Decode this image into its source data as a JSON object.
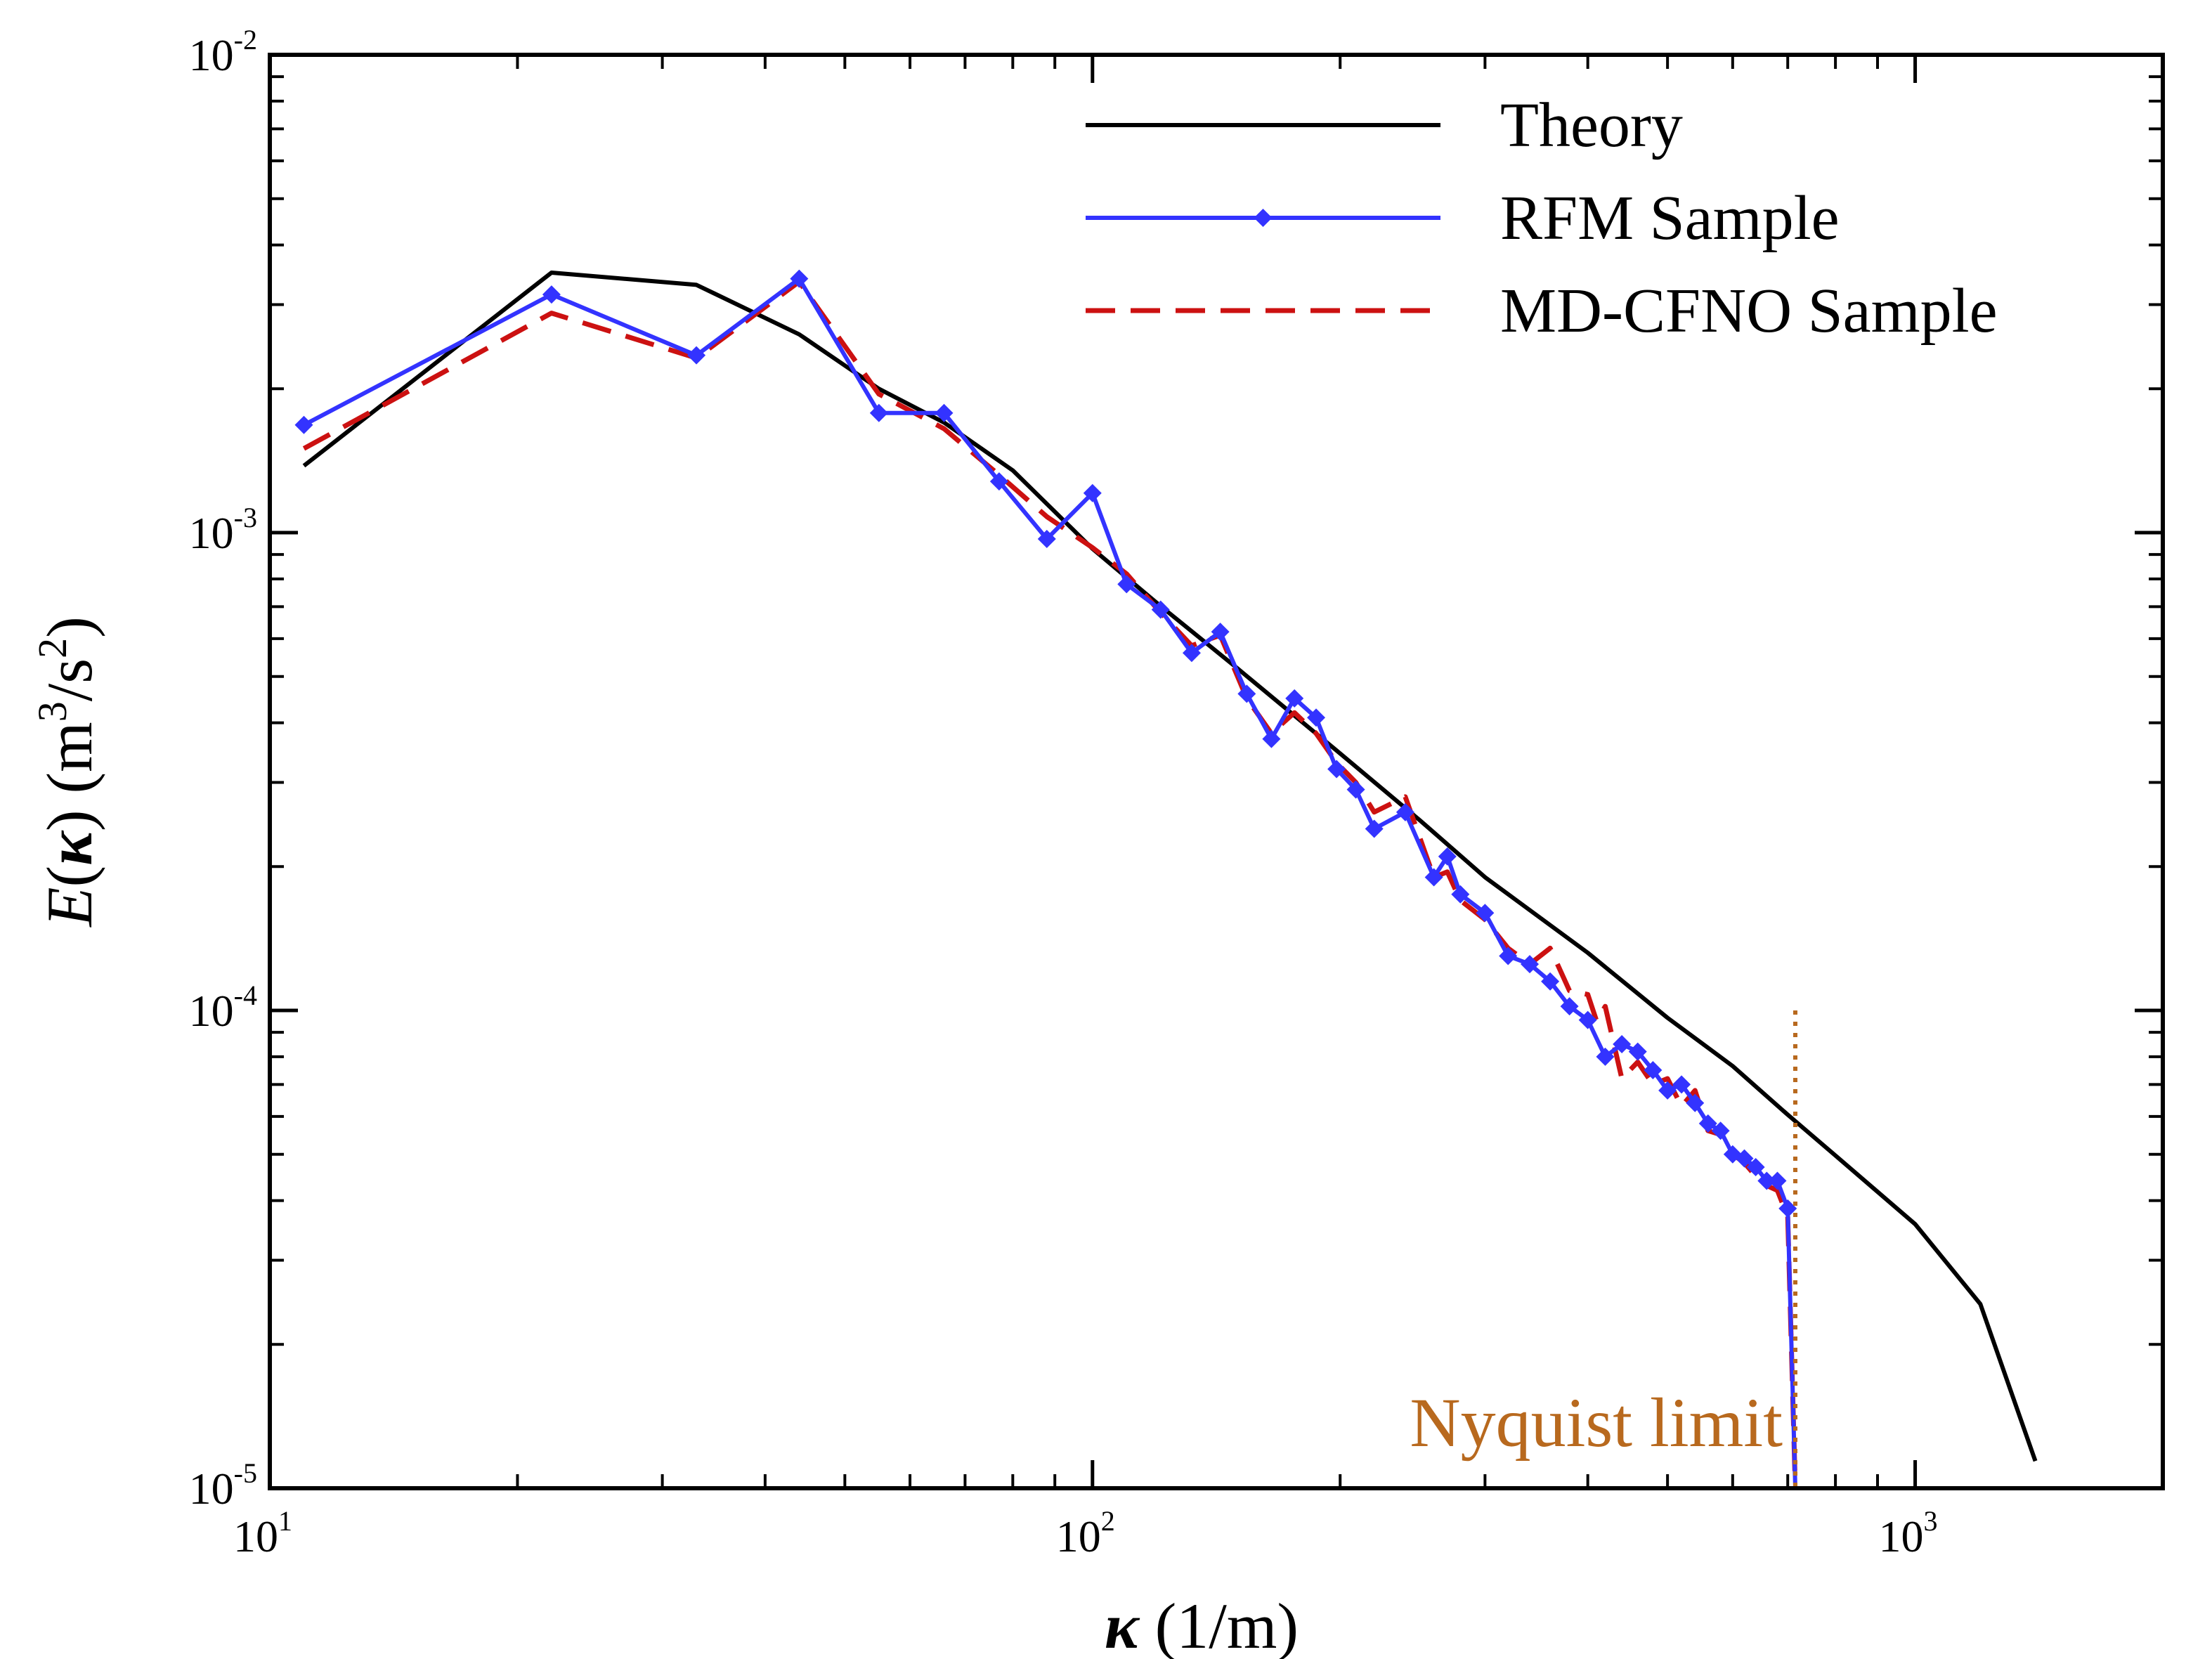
{
  "chart_data": {
    "type": "line",
    "xscale": "log",
    "yscale": "log",
    "xlim": [
      10,
      2000
    ],
    "ylim": [
      1e-05,
      0.01
    ],
    "xticks": [
      {
        "value": 10,
        "base": "10",
        "exp": "1"
      },
      {
        "value": 100,
        "base": "10",
        "exp": "2"
      },
      {
        "value": 1000,
        "base": "10",
        "exp": "3"
      }
    ],
    "yticks": [
      {
        "value": 1e-05,
        "base": "10",
        "exp": "-5"
      },
      {
        "value": 0.0001,
        "base": "10",
        "exp": "-4"
      },
      {
        "value": 0.001,
        "base": "10",
        "exp": "-3"
      },
      {
        "value": 0.01,
        "base": "10",
        "exp": "-2"
      }
    ],
    "xlabel": {
      "symbol": "κ",
      "unit": " (1/m)"
    },
    "ylabel": {
      "func": "E",
      "open": "(",
      "symbol": "κ",
      "close": ")",
      "unit_open": " (m",
      "sup1": "3",
      "unit_mid": "/s",
      "sup2": "2",
      "unit_close": ")"
    },
    "legend_position": "top-right",
    "series": [
      {
        "name": "Theory",
        "color": "#000000",
        "style": "solid",
        "marker": "none",
        "x": [
          11,
          22,
          33,
          44,
          55,
          66,
          80,
          100,
          120,
          150,
          200,
          250,
          300,
          400,
          500,
          600,
          700,
          800,
          1000,
          1200,
          1400
        ],
        "y": [
          0.00138,
          0.0035,
          0.0033,
          0.0026,
          0.002,
          0.0017,
          0.00135,
          0.000925,
          0.00071,
          0.00052,
          0.000345,
          0.00025,
          0.00019,
          0.000132,
          9.65e-05,
          7.65e-05,
          6.05e-05,
          4.97e-05,
          3.57e-05,
          2.43e-05,
          1.14e-05
        ]
      },
      {
        "name": "RFM Sample",
        "color": "#3333ff",
        "style": "solid",
        "marker": "diamond",
        "x": [
          11,
          22,
          33,
          44,
          55,
          66,
          77,
          88,
          100,
          110,
          121,
          132,
          143,
          154,
          165,
          176,
          187,
          198,
          209,
          220,
          240,
          260,
          270,
          280,
          300,
          320,
          340,
          360,
          380,
          400,
          420,
          440,
          460,
          480,
          500,
          520,
          540,
          560,
          580,
          600,
          620,
          640,
          660,
          680,
          700,
          715
        ],
        "y": [
          0.00168,
          0.00315,
          0.00235,
          0.0034,
          0.00178,
          0.00178,
          0.00128,
          0.00097,
          0.00121,
          0.00078,
          0.00069,
          0.00056,
          0.00062,
          0.00046,
          0.00037,
          0.00045,
          0.00041,
          0.00032,
          0.00029,
          0.00024,
          0.00026,
          0.00019,
          0.00021,
          0.000175,
          0.00016,
          0.00013,
          0.000125,
          0.000115,
          0.000102,
          9.55e-05,
          8e-05,
          8.5e-05,
          8.2e-05,
          7.5e-05,
          6.8e-05,
          7e-05,
          6.4e-05,
          5.8e-05,
          5.6e-05,
          5e-05,
          4.9e-05,
          4.7e-05,
          4.4e-05,
          4.4e-05,
          3.85e-05,
          1e-05
        ]
      },
      {
        "name": "MD-CFNO Sample",
        "color": "#cc1111",
        "style": "dashed",
        "marker": "none",
        "x": [
          11,
          22,
          33,
          44,
          55,
          66,
          77,
          88,
          100,
          110,
          121,
          132,
          143,
          154,
          165,
          176,
          187,
          198,
          209,
          220,
          240,
          260,
          270,
          280,
          300,
          320,
          340,
          360,
          380,
          400,
          410,
          420,
          440,
          460,
          480,
          500,
          520,
          540,
          560,
          580,
          600,
          620,
          640,
          660,
          680,
          700,
          715
        ],
        "y": [
          0.0015,
          0.00288,
          0.00232,
          0.00335,
          0.00195,
          0.00165,
          0.00132,
          0.00108,
          0.00093,
          0.00082,
          0.00068,
          0.00058,
          0.00061,
          0.00045,
          0.00038,
          0.00042,
          0.00038,
          0.00033,
          0.0003,
          0.00026,
          0.00028,
          0.00019,
          0.000195,
          0.00017,
          0.000155,
          0.000135,
          0.000125,
          0.000135,
          0.00011,
          0.000108,
          9.5e-05,
          0.000102,
          7.2e-05,
          7.8e-05,
          7e-05,
          7.2e-05,
          6.3e-05,
          6.8e-05,
          5.6e-05,
          5.5e-05,
          5e-05,
          4.8e-05,
          4.5e-05,
          4.3e-05,
          4.2e-05,
          3.7e-05,
          1e-05
        ]
      }
    ],
    "annotations": [
      {
        "text": "Nyquist limit",
        "x": 715,
        "y_range": [
          1e-05,
          0.0001
        ],
        "color": "#b8691e",
        "line_style": "dotted"
      }
    ]
  }
}
